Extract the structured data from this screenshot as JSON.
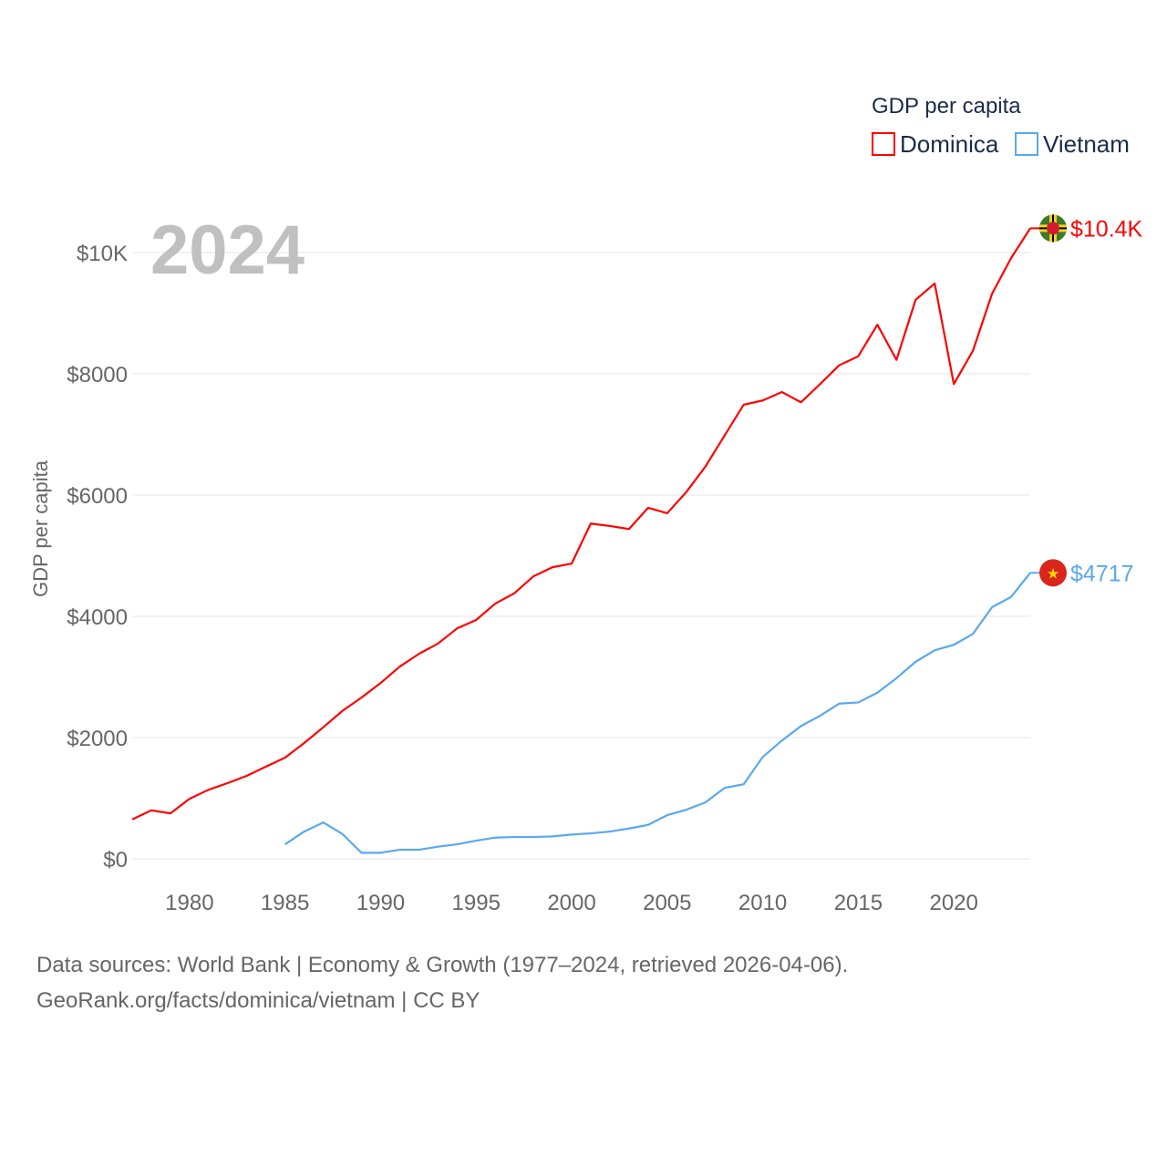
{
  "chart_data": {
    "type": "line",
    "title": "2024",
    "ylabel": "GDP per capita",
    "xlabel": "",
    "xlim": [
      1977,
      2024
    ],
    "ylim": [
      0,
      10000
    ],
    "x_ticks": [
      1980,
      1985,
      1990,
      1995,
      2000,
      2005,
      2010,
      2015,
      2020
    ],
    "x_tick_labels": [
      "1980",
      "1985",
      "1990",
      "1995",
      "2000",
      "2005",
      "2010",
      "2015",
      "2020"
    ],
    "y_ticks": [
      0,
      2000,
      4000,
      6000,
      8000,
      10000
    ],
    "y_tick_labels": [
      "$0",
      "$2000",
      "$4000",
      "$6000",
      "$8000",
      "$10K"
    ],
    "grid": true,
    "legend_title": "GDP per capita",
    "legend_position": "top-right",
    "series": [
      {
        "name": "Dominica",
        "color": "#ff0000",
        "end_label": "$10.4K",
        "flag": "dominica-flag",
        "x": [
          1977,
          1978,
          1979,
          1980,
          1981,
          1982,
          1983,
          1984,
          1985,
          1986,
          1987,
          1988,
          1989,
          1990,
          1991,
          1992,
          1993,
          1994,
          1995,
          1996,
          1997,
          1998,
          1999,
          2000,
          2001,
          2002,
          2003,
          2004,
          2005,
          2006,
          2007,
          2008,
          2009,
          2010,
          2011,
          2012,
          2013,
          2014,
          2015,
          2016,
          2017,
          2018,
          2019,
          2020,
          2021,
          2022,
          2023,
          2024
        ],
        "values": [
          650,
          800,
          750,
          990,
          1140,
          1250,
          1370,
          1520,
          1670,
          1910,
          2170,
          2440,
          2660,
          2900,
          3170,
          3380,
          3550,
          3800,
          3940,
          4210,
          4380,
          4660,
          4810,
          4870,
          5530,
          5490,
          5440,
          5790,
          5700,
          6050,
          6470,
          6980,
          7490,
          7560,
          7700,
          7530,
          7830,
          8140,
          8290,
          8810,
          8230,
          9220,
          9490,
          7830,
          8380,
          9320,
          9910,
          10400
        ]
      },
      {
        "name": "Vietnam",
        "color": "#5aa8ee",
        "end_label": "$4717",
        "flag": "vietnam-flag",
        "x": [
          1985,
          1986,
          1987,
          1988,
          1989,
          1990,
          1991,
          1992,
          1993,
          1994,
          1995,
          1996,
          1997,
          1998,
          1999,
          2000,
          2001,
          2002,
          2003,
          2004,
          2005,
          2006,
          2007,
          2008,
          2009,
          2010,
          2011,
          2012,
          2013,
          2014,
          2015,
          2016,
          2017,
          2018,
          2019,
          2020,
          2021,
          2022,
          2023,
          2024
        ],
        "values": [
          240,
          450,
          600,
          410,
          100,
          100,
          150,
          150,
          200,
          240,
          300,
          350,
          360,
          360,
          370,
          400,
          420,
          450,
          500,
          560,
          720,
          810,
          930,
          1170,
          1230,
          1680,
          1950,
          2190,
          2360,
          2560,
          2580,
          2740,
          2980,
          3250,
          3440,
          3530,
          3710,
          4150,
          4320,
          4717
        ]
      }
    ]
  },
  "footer": {
    "line1": "Data sources: World Bank | Economy & Growth (1977–2024, retrieved 2026-04-06).",
    "line2": "GeoRank.org/facts/dominica/vietnam | CC BY"
  }
}
